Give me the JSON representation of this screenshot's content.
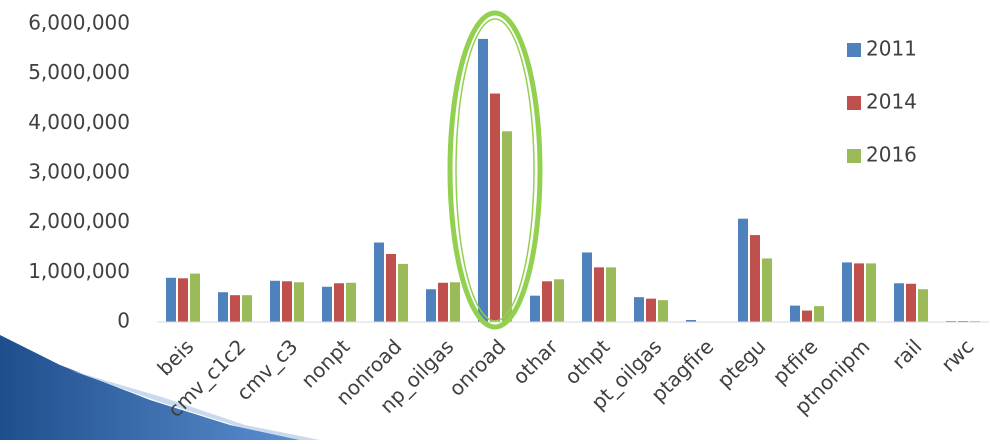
{
  "chart_data": {
    "type": "bar",
    "categories": [
      "beis",
      "cmv_c1c2",
      "cmv_c3",
      "nonpt",
      "nonroad",
      "np_oilgas",
      "onroad",
      "othar",
      "othpt",
      "pt_oilgas",
      "ptagfire",
      "ptegu",
      "ptfire",
      "ptnonipm",
      "rail",
      "rwc"
    ],
    "series": [
      {
        "name": "2011",
        "color": "#4f81bd",
        "values": [
          890000,
          600000,
          830000,
          710000,
          1600000,
          660000,
          5700000,
          530000,
          1400000,
          500000,
          40000,
          2080000,
          330000,
          1200000,
          780000,
          20000
        ]
      },
      {
        "name": "2014",
        "color": "#c0504d",
        "values": [
          880000,
          540000,
          820000,
          780000,
          1370000,
          790000,
          4600000,
          820000,
          1100000,
          470000,
          5000,
          1750000,
          230000,
          1180000,
          770000,
          20000
        ]
      },
      {
        "name": "2016",
        "color": "#9bbb59",
        "values": [
          975000,
          540000,
          800000,
          790000,
          1170000,
          800000,
          3840000,
          860000,
          1100000,
          440000,
          5000,
          1280000,
          320000,
          1180000,
          660000,
          20000
        ]
      }
    ],
    "ylim": [
      0,
      6000000
    ],
    "yticks": [
      0,
      {
        "value": 1000000,
        "label": "1,000,000"
      },
      {
        "value": 2000000,
        "label": "2,000,000"
      },
      {
        "value": 3000000,
        "label": "3,000,000"
      },
      {
        "value": 4000000,
        "label": "4,000,000"
      },
      {
        "value": 5000000,
        "label": "5,000,000"
      },
      {
        "value": 6000000,
        "label": "6,000,000"
      }
    ],
    "legend": "top-right"
  }
}
